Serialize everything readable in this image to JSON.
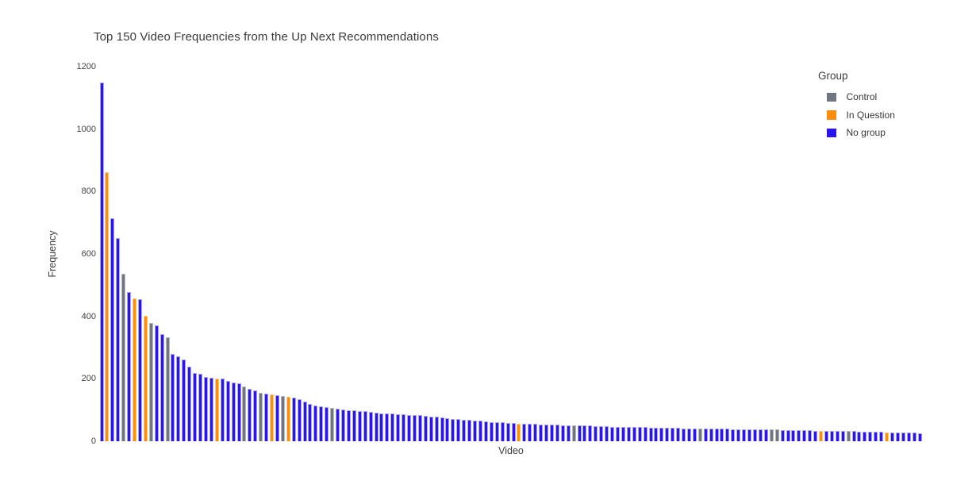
{
  "title": "Top 150 Video Frequencies from the Up Next Recommendations",
  "legend": {
    "title": "Group",
    "items": [
      {
        "label": "Control",
        "color": "#6f7680"
      },
      {
        "label": "In Question",
        "color": "#fd8d0d"
      },
      {
        "label": "No group",
        "color": "#2b15ef"
      }
    ]
  },
  "chart_data": {
    "type": "bar",
    "title": "Top 150 Video Frequencies from the Up Next Recommendations",
    "xlabel": "Video",
    "ylabel": "Frequency",
    "ylim": [
      0,
      1200
    ],
    "yticks": [
      0,
      200,
      400,
      600,
      800,
      1000,
      1200
    ],
    "x_tick_labels": [],
    "n_bars": 150,
    "grid": false,
    "legend_position": "top-right",
    "categories_note": "150 individual videos sorted by frequency, x tick labels not shown",
    "group_defs": {
      "C": {
        "label": "Control",
        "color": "#6f7680",
        "edge": "#b6bac1"
      },
      "O": {
        "label": "In Question",
        "color": "#fd8d0d",
        "edge": "#ffc98d"
      },
      "B": {
        "label": "No group",
        "color": "#2b15ef",
        "edge": "#aaa6f8"
      }
    },
    "values": [
      1150,
      863,
      714,
      651,
      536,
      477,
      458,
      455,
      401,
      378,
      371,
      344,
      333,
      280,
      271,
      263,
      240,
      220,
      216,
      206,
      203,
      202,
      200,
      193,
      189,
      185,
      176,
      168,
      163,
      155,
      152,
      150,
      147,
      144,
      143,
      140,
      136,
      128,
      120,
      115,
      112,
      109,
      106,
      104,
      102,
      100,
      99,
      97,
      96,
      95,
      92,
      90,
      89,
      88,
      87,
      86,
      85,
      84,
      83,
      82,
      80,
      78,
      76,
      74,
      72,
      71,
      70,
      68,
      66,
      65,
      64,
      62,
      61,
      60,
      59,
      58,
      57,
      56,
      55,
      55,
      54,
      54,
      53,
      53,
      52,
      52,
      52,
      51,
      50,
      50,
      49,
      48,
      48,
      47,
      47,
      46,
      46,
      45,
      45,
      45,
      44,
      44,
      44,
      43,
      43,
      43,
      42,
      42,
      42,
      42,
      41,
      41,
      40,
      40,
      40,
      39,
      39,
      39,
      38,
      38,
      38,
      37,
      37,
      37,
      36,
      36,
      36,
      35,
      35,
      35,
      34,
      34,
      34,
      33,
      33,
      33,
      32,
      32,
      31,
      31,
      30,
      30,
      30,
      29,
      29,
      28,
      28,
      27,
      27,
      26
    ],
    "bar_groups": [
      "B",
      "O",
      "B",
      "B",
      "C",
      "B",
      "O",
      "B",
      "O",
      "C",
      "B",
      "B",
      "C",
      "B",
      "B",
      "B",
      "B",
      "B",
      "B",
      "B",
      "B",
      "O",
      "B",
      "B",
      "B",
      "B",
      "C",
      "B",
      "B",
      "C",
      "B",
      "O",
      "B",
      "C",
      "O",
      "B",
      "B",
      "B",
      "B",
      "B",
      "B",
      "B",
      "C",
      "B",
      "B",
      "B",
      "B",
      "B",
      "B",
      "B",
      "B",
      "B",
      "B",
      "B",
      "B",
      "B",
      "B",
      "B",
      "B",
      "B",
      "B",
      "B",
      "B",
      "B",
      "B",
      "B",
      "B",
      "B",
      "B",
      "B",
      "B",
      "B",
      "B",
      "B",
      "B",
      "B",
      "O",
      "B",
      "B",
      "B",
      "B",
      "B",
      "B",
      "B",
      "B",
      "B",
      "C",
      "B",
      "B",
      "B",
      "B",
      "B",
      "B",
      "B",
      "B",
      "B",
      "B",
      "B",
      "B",
      "B",
      "B",
      "B",
      "B",
      "B",
      "B",
      "B",
      "B",
      "B",
      "B",
      "C",
      "B",
      "B",
      "B",
      "B",
      "B",
      "B",
      "B",
      "B",
      "B",
      "B",
      "B",
      "B",
      "C",
      "C",
      "B",
      "B",
      "B",
      "B",
      "B",
      "B",
      "B",
      "O",
      "B",
      "B",
      "B",
      "B",
      "C",
      "B",
      "B",
      "B",
      "B",
      "B",
      "B",
      "O",
      "B",
      "B",
      "B",
      "B",
      "B",
      "B"
    ]
  }
}
